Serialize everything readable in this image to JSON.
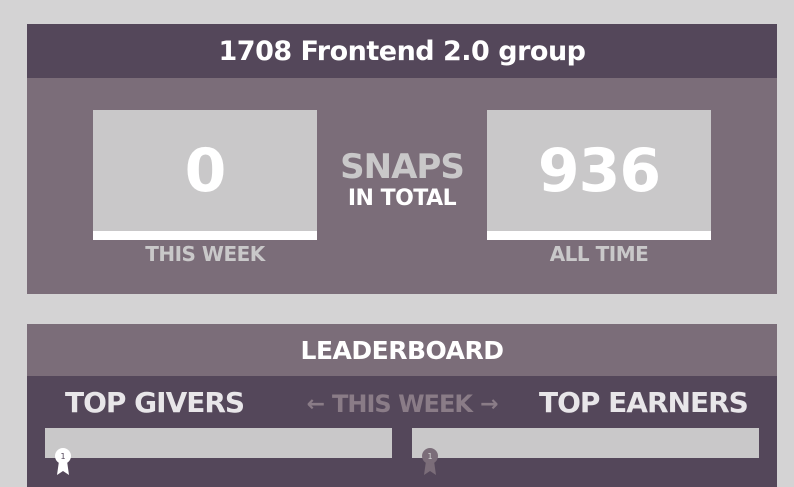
{
  "group": {
    "title": "1708 Frontend 2.0 group",
    "this_week_count": "0",
    "this_week_label": "THIS WEEK",
    "all_time_count": "936",
    "all_time_label": "ALL TIME",
    "snaps_word": "SNAPS",
    "snaps_sub": "IN TOTAL"
  },
  "leaderboard": {
    "title": "LEADERBOARD",
    "givers_title": "TOP GIVERS",
    "earners_title": "TOP EARNERS",
    "period": "THIS WEEK",
    "left_arrow": "←",
    "right_arrow": "→",
    "givers": [
      {
        "rank": "1"
      }
    ],
    "earners": [
      {
        "rank": "1"
      }
    ]
  },
  "colors": {
    "page_bg": "#d4d3d4",
    "dark_purple": "#54475a",
    "mid_purple": "#7b6d79",
    "light_grey": "#c9c8c9",
    "white": "#ffffff"
  }
}
